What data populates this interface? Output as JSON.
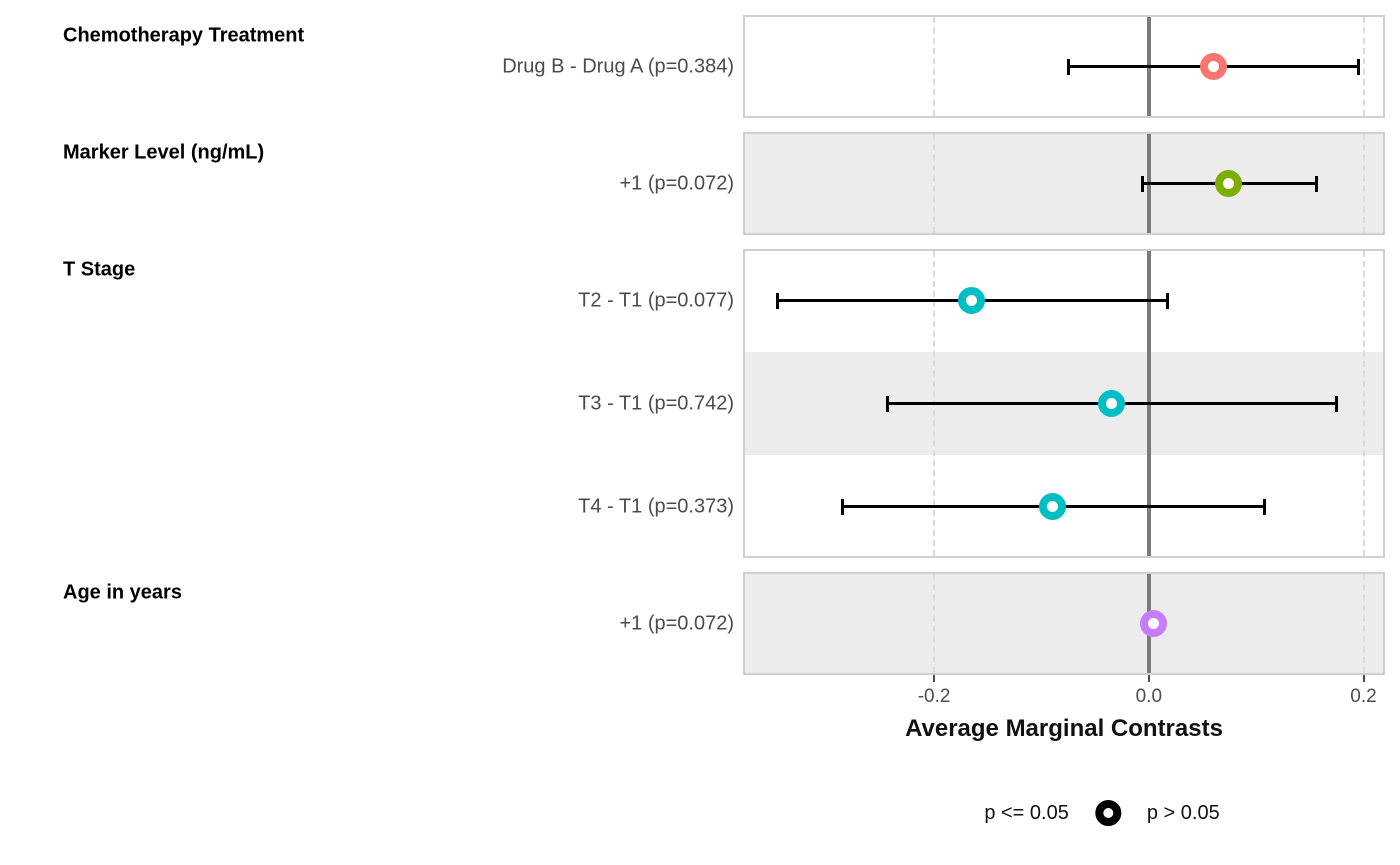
{
  "chart_data": {
    "type": "scatter",
    "subtype": "forest-pointrange",
    "title": "",
    "xlabel": "Average Marginal Contrasts",
    "xlim": [
      -0.378,
      0.22
    ],
    "x_ticks": [
      {
        "value": -0.2,
        "label": "-0.2"
      },
      {
        "value": 0.0,
        "label": "0.0"
      },
      {
        "value": 0.2,
        "label": "0.2"
      }
    ],
    "reference_line": 0.0,
    "gridlines": {
      "style": "dashed",
      "values": [
        -0.2,
        0.2
      ]
    },
    "legend_position": "bottom",
    "legend": [
      {
        "label": "p <= 0.05",
        "glyph": "none"
      },
      {
        "label": "p > 0.05",
        "glyph": "open-circle",
        "color": "#000000"
      }
    ],
    "colors": {
      "shaded_row": "#ececec",
      "panel_border": "#cfcfcf",
      "grid_dashed": "#dadada",
      "zero_line": "#7b7b7b",
      "error_bar": "#000000",
      "tick_text": "#4d4d4d",
      "row_label_text": "#4b4b4b"
    },
    "groups": [
      {
        "header": "Chemotherapy Treatment",
        "color": "#F8766D",
        "rows": [
          {
            "label": "Drug B - Drug A (p=0.384)",
            "estimate": 0.06,
            "ci_low": -0.075,
            "ci_high": 0.196,
            "p_value": 0.384,
            "shaded": false
          }
        ]
      },
      {
        "header": "Marker Level (ng/mL)",
        "color": "#7CAE00",
        "rows": [
          {
            "label": "+1 (p=0.072)",
            "estimate": 0.074,
            "ci_low": -0.006,
            "ci_high": 0.157,
            "p_value": 0.072,
            "shaded": true
          }
        ]
      },
      {
        "header": "T Stage",
        "color": "#00BFC4",
        "rows": [
          {
            "label": "T2 - T1 (p=0.077)",
            "estimate": -0.165,
            "ci_low": -0.346,
            "ci_high": 0.018,
            "p_value": 0.077,
            "shaded": false
          },
          {
            "label": "T3 - T1 (p=0.742)",
            "estimate": -0.035,
            "ci_low": -0.244,
            "ci_high": 0.175,
            "p_value": 0.742,
            "shaded": true
          },
          {
            "label": "T4 - T1 (p=0.373)",
            "estimate": -0.09,
            "ci_low": -0.286,
            "ci_high": 0.108,
            "p_value": 0.373,
            "shaded": false
          }
        ]
      },
      {
        "header": "Age in years",
        "color": "#C77CFF",
        "rows": [
          {
            "label": "+1 (p=0.072)",
            "estimate": 0.004,
            "ci_low": 0.0,
            "ci_high": 0.008,
            "p_value": 0.072,
            "shaded": true
          }
        ]
      }
    ]
  }
}
